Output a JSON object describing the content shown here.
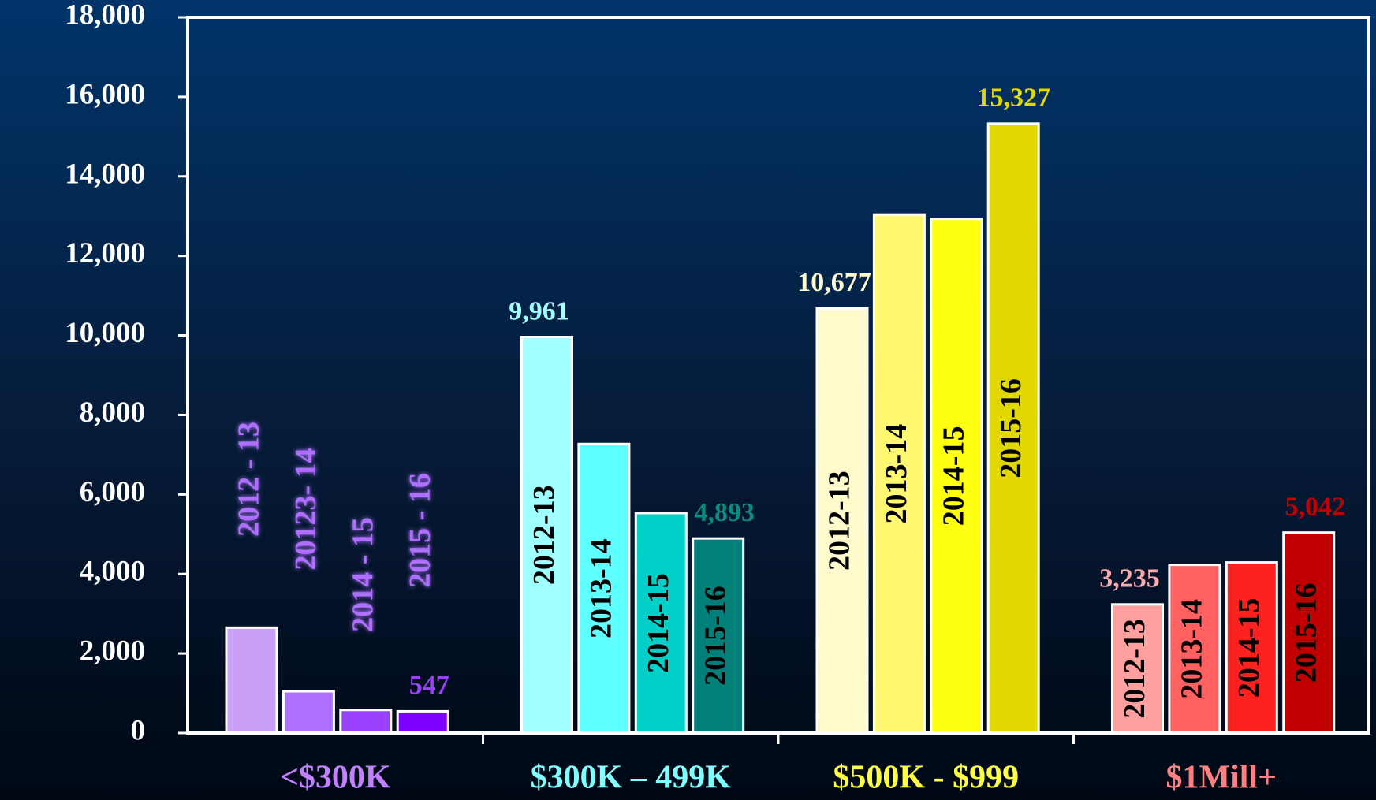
{
  "chart_data": {
    "type": "grouped-bar",
    "categories": [
      "<$300K",
      "$300K – 499K",
      "$500K - $999",
      "$1Mill+"
    ],
    "category_colors": [
      "#c080ff",
      "#80ffff",
      "#ffff40",
      "#ff8080"
    ],
    "groups": [
      {
        "labels": [
          "2012 - 13",
          "20123- 14",
          "2014 - 15",
          "2015 - 16"
        ],
        "colors": [
          "#c9a0f5",
          "#b070ff",
          "#9a40ff",
          "#8000ff"
        ],
        "label_color": "#b070ff",
        "values": [
          2650,
          1050,
          580,
          547
        ],
        "value_labels": [
          null,
          null,
          null,
          "547"
        ],
        "value_label_colors": [
          null,
          null,
          null,
          "#a040ff"
        ]
      },
      {
        "labels": [
          "2012-13",
          "2013-14",
          "2014-15",
          "2015-16"
        ],
        "colors": [
          "#a0ffff",
          "#60ffff",
          "#00d0c8",
          "#008078"
        ],
        "label_color": "#000000",
        "values": [
          9961,
          7270,
          5530,
          4893
        ],
        "value_labels": [
          "9,961",
          null,
          null,
          "4,893"
        ],
        "value_label_colors": [
          "#a0ffff",
          null,
          null,
          "#0a8a80"
        ]
      },
      {
        "labels": [
          "2012-13",
          "2013-14",
          "2014-15",
          "2015-16"
        ],
        "colors": [
          "#fffacc",
          "#fff870",
          "#ffff10",
          "#e0d800"
        ],
        "label_color": "#000000",
        "values": [
          10677,
          13040,
          12930,
          15327
        ],
        "value_labels": [
          "10,677",
          null,
          null,
          "15,327"
        ],
        "value_label_colors": [
          "#fffacd",
          null,
          null,
          "#e0d800"
        ]
      },
      {
        "labels": [
          "2012-13",
          "2013-14",
          "2014-15",
          "2015-16"
        ],
        "colors": [
          "#ffa0a0",
          "#ff6060",
          "#ff2020",
          "#c00000"
        ],
        "label_color": "#000000",
        "values": [
          3235,
          4230,
          4290,
          5042
        ],
        "value_labels": [
          "3,235",
          null,
          null,
          "5,042"
        ],
        "value_label_colors": [
          "#ffaaaa",
          null,
          null,
          "#c00000"
        ]
      }
    ],
    "ylim": [
      0,
      18000
    ],
    "yticks": [
      0,
      {
        "value": 2000,
        "label": "2,000"
      },
      {
        "value": 4000,
        "label": "4,000"
      },
      {
        "value": 6000,
        "label": "6,000"
      },
      {
        "value": 8000,
        "label": "8,000"
      },
      {
        "value": 10000,
        "label": "10,000"
      },
      {
        "value": 12000,
        "label": "12,000"
      },
      {
        "value": 14000,
        "label": "14,000"
      },
      {
        "value": 16000,
        "label": "16,000"
      },
      {
        "value": 18000,
        "label": "18,000"
      }
    ]
  }
}
